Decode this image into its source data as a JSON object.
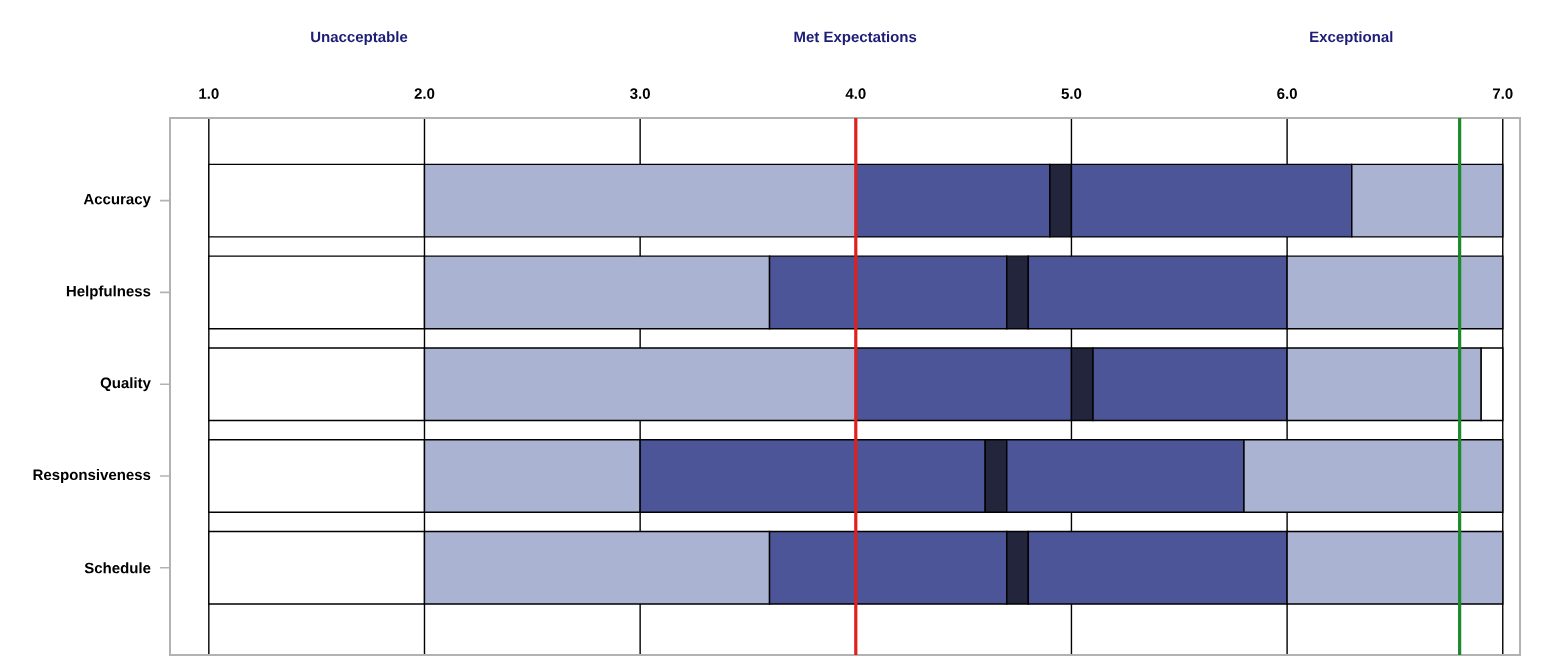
{
  "chart_data": {
    "type": "bar",
    "orientation": "horizontal",
    "categories": [
      "Accuracy",
      "Helpfulness",
      "Quality",
      "Responsiveness",
      "Schedule"
    ],
    "series": [
      {
        "color": "#ffffff",
        "base": [
          1,
          1,
          1,
          1,
          1
        ],
        "values": [
          1,
          1,
          1,
          1,
          1
        ]
      },
      {
        "color": "#aab3d1",
        "base": [
          2,
          2,
          2,
          2,
          2
        ],
        "values": [
          2,
          1.6,
          2,
          1,
          1.6
        ]
      },
      {
        "color": "#4b5597",
        "base": [
          4,
          3.6,
          4,
          3,
          3.6
        ],
        "values": [
          0.9,
          1.1,
          1,
          1.6,
          1.1
        ]
      },
      {
        "color": "#23253d",
        "base": [
          4.9,
          4.7,
          5,
          4.6,
          4.7
        ],
        "values": [
          0.1,
          0.1,
          0.1,
          0.1,
          0.1
        ]
      },
      {
        "color": "#4b5597",
        "base": [
          5,
          4.8,
          5.1,
          4.7,
          4.8
        ],
        "values": [
          1.3,
          1.2,
          0.9,
          1.1,
          1.2
        ]
      },
      {
        "color": "#aab3d1",
        "base": [
          6.3,
          6,
          6,
          5.8,
          6
        ],
        "values": [
          0.7,
          1,
          0.9,
          1.2,
          1
        ]
      },
      {
        "color": "#ffffff",
        "base": [
          null,
          null,
          6.9,
          null,
          null
        ],
        "values": [
          null,
          null,
          0.1,
          null,
          null
        ]
      }
    ],
    "xlim": [
      0.82,
      7.08
    ],
    "xticks": [
      {
        "value": 1,
        "label": "1.0"
      },
      {
        "value": 2,
        "label": "2.0"
      },
      {
        "value": 3,
        "label": "3.0"
      },
      {
        "value": 4,
        "label": "4.0"
      },
      {
        "value": 5,
        "label": "5.0"
      },
      {
        "value": 6,
        "label": "6.0"
      },
      {
        "value": 7,
        "label": "7.0"
      }
    ],
    "annotations": [
      "Unacceptable",
      "Met Expectations",
      "Exceptional"
    ],
    "ref_lines": [
      {
        "axis": "x",
        "value": 4,
        "color": "#e0201a"
      },
      {
        "axis": "x",
        "value": 6.8,
        "color": "#1a8a2a"
      }
    ],
    "grid": "x"
  }
}
